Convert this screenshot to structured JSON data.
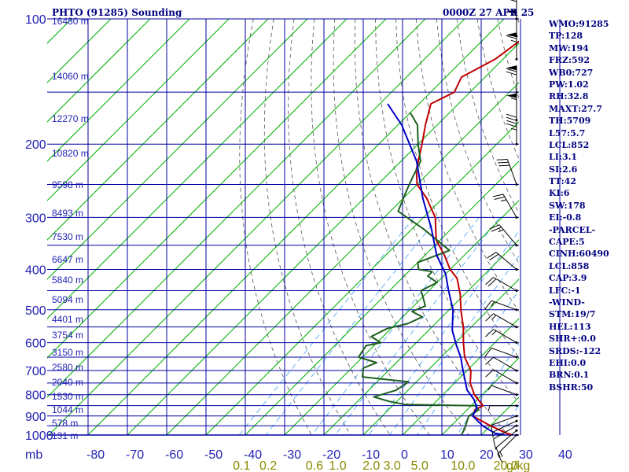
{
  "header": {
    "station_title": "PHTO (91285) Sounding",
    "valid_time": "0000Z 27 APR 25"
  },
  "axes": {
    "pressure_ticks": [
      "100",
      "200",
      "300",
      "400",
      "500",
      "600",
      "700",
      "800",
      "900",
      "1000"
    ],
    "pressure_unit": "mb",
    "temp_ticks": [
      "-80",
      "-70",
      "-60",
      "-50",
      "-40",
      "-30",
      "-20",
      "-10",
      "0",
      "10",
      "20",
      "30",
      "40"
    ],
    "mixing_ratio_labels": [
      "0.1",
      "0.2",
      "0.6",
      "1.0",
      "2.0",
      "3.0",
      "5.0",
      "10.0",
      "20.0"
    ],
    "mixing_ratio_unit": "g/kg"
  },
  "height_labels": [
    "16480 m",
    "14060 m",
    "12270 m",
    "10820 m",
    "9598 m",
    "8493 m",
    "7530 m",
    "6647 m",
    "5840 m",
    "5094 m",
    "4401 m",
    "3754 m",
    "3150 m",
    "2580 m",
    "2040 m",
    "1530 m",
    "1044 m",
    "578 m",
    "131 m"
  ],
  "indices": [
    "WMO:91285",
    "TP:128",
    "MW:194",
    "FRZ:592",
    "WB0:727",
    "PW:1.02",
    "RH:32.8",
    "MAXT:27.7",
    "TH:5709",
    "L57:5.7",
    "LCL:852",
    "LI:3.1",
    "SI:2.6",
    "TT:42",
    "KI:6",
    "SW:178",
    "EI:-0.8",
    "-PARCEL-",
    "CAPE:5",
    "CINH:60490",
    "LCL:858",
    "CAP:3.9",
    "LFC:-1",
    "-WIND-",
    "STM:19/7",
    "HEL:113",
    "SHR+:0.0",
    "SRDS:-122",
    "EHI:0.0",
    "BRN:0.1",
    "BSHR:50"
  ],
  "colors": {
    "temperature": "#c00000",
    "dewpoint": "#1f5f1f",
    "parcel": "#0000c8",
    "isobar": "#0000a0",
    "isotherm": "#00b000",
    "dry_adiabat": "#555555",
    "mixing_ratio": "#3fa0ff"
  },
  "chart_data": {
    "type": "line",
    "title": "PHTO (91285) Sounding",
    "subtitle": "0000Z 27 APR 25",
    "xlabel": "",
    "ylabel": "mb",
    "x_unit": "degC",
    "y_unit": "mb",
    "xlim": [
      -80,
      40
    ],
    "ylim": [
      1000,
      100
    ],
    "y_scale": "log",
    "grid": true,
    "series": [
      {
        "values": [
          [
            28,
            1000
          ],
          [
            26,
            990
          ],
          [
            20,
            950
          ],
          [
            13,
            900
          ],
          [
            12,
            870
          ],
          [
            13,
            850
          ],
          [
            10,
            820
          ],
          [
            8,
            800
          ],
          [
            4,
            750
          ],
          [
            1,
            700
          ],
          [
            -4,
            650
          ],
          [
            -8,
            600
          ],
          [
            -12,
            550
          ],
          [
            -17,
            500
          ],
          [
            -21,
            460
          ],
          [
            -26,
            420
          ],
          [
            -30,
            400
          ],
          [
            -35,
            370
          ],
          [
            -41,
            340
          ],
          [
            -47,
            300
          ],
          [
            -54,
            270
          ],
          [
            -60,
            250
          ],
          [
            -64,
            230
          ],
          [
            -69,
            200
          ],
          [
            -73,
            180
          ],
          [
            -77,
            160
          ],
          [
            -74,
            150
          ],
          [
            -76,
            138
          ],
          [
            -72,
            125
          ],
          [
            -70,
            110
          ],
          [
            -71,
            100
          ]
        ]
      },
      {
        "values": [
          [
            15,
            1000
          ],
          [
            14,
            960
          ],
          [
            13,
            930
          ],
          [
            12,
            900
          ],
          [
            13,
            870
          ],
          [
            11,
            850
          ],
          [
            -7,
            845
          ],
          [
            -12,
            830
          ],
          [
            -17,
            810
          ],
          [
            -13,
            780
          ],
          [
            -12,
            745
          ],
          [
            -25,
            725
          ],
          [
            -27,
            690
          ],
          [
            -25,
            670
          ],
          [
            -31,
            650
          ],
          [
            -32,
            610
          ],
          [
            -29,
            600
          ],
          [
            -33,
            580
          ],
          [
            -31,
            555
          ],
          [
            -27,
            540
          ],
          [
            -25,
            520
          ],
          [
            -29,
            505
          ],
          [
            -27,
            490
          ],
          [
            -30,
            465
          ],
          [
            -32,
            450
          ],
          [
            -30,
            430
          ],
          [
            -34,
            415
          ],
          [
            -34,
            405
          ],
          [
            -38,
            400
          ],
          [
            -40,
            385
          ],
          [
            -35,
            360
          ],
          [
            -47,
            320
          ],
          [
            -58,
            290
          ],
          [
            -61,
            260
          ],
          [
            -63,
            240
          ],
          [
            -65,
            220
          ],
          [
            -70,
            200
          ],
          [
            -75,
            180
          ],
          [
            -80,
            168
          ]
        ]
      },
      {
        "values": [
          [
            26,
            1000
          ],
          [
            23,
            990
          ],
          [
            18,
            950
          ],
          [
            13,
            900
          ],
          [
            12,
            860
          ],
          [
            9,
            820
          ],
          [
            5,
            780
          ],
          [
            -1,
            700
          ],
          [
            -5,
            650
          ],
          [
            -9,
            610
          ],
          [
            -14,
            560
          ],
          [
            -19,
            500
          ],
          [
            -25,
            450
          ],
          [
            -30,
            410
          ],
          [
            -37,
            370
          ],
          [
            -45,
            320
          ],
          [
            -55,
            270
          ],
          [
            -66,
            220
          ],
          [
            -79,
            180
          ],
          [
            -88,
            160
          ]
        ]
      }
    ]
  },
  "winds": [
    {
      "p": 1000,
      "dir": 225,
      "spd": 15
    },
    {
      "p": 975,
      "dir": 230,
      "spd": 10
    },
    {
      "p": 950,
      "dir": 240,
      "spd": 10
    },
    {
      "p": 925,
      "dir": 245,
      "spd": 5
    },
    {
      "p": 900,
      "dir": 250,
      "spd": 5
    },
    {
      "p": 850,
      "dir": 270,
      "spd": 5
    },
    {
      "p": 800,
      "dir": 290,
      "spd": 5
    },
    {
      "p": 750,
      "dir": 300,
      "spd": 10
    },
    {
      "p": 700,
      "dir": 300,
      "spd": 10
    },
    {
      "p": 650,
      "dir": 290,
      "spd": 10
    },
    {
      "p": 600,
      "dir": 300,
      "spd": 15
    },
    {
      "p": 550,
      "dir": 300,
      "spd": 15
    },
    {
      "p": 500,
      "dir": 290,
      "spd": 15
    },
    {
      "p": 450,
      "dir": 300,
      "spd": 20
    },
    {
      "p": 400,
      "dir": 310,
      "spd": 20
    },
    {
      "p": 350,
      "dir": 320,
      "spd": 25
    },
    {
      "p": 300,
      "dir": 330,
      "spd": 25
    },
    {
      "p": 250,
      "dir": 340,
      "spd": 30
    },
    {
      "p": 200,
      "dir": 0,
      "spd": 45
    },
    {
      "p": 175,
      "dir": 0,
      "spd": 55
    },
    {
      "p": 150,
      "dir": 0,
      "spd": 70
    },
    {
      "p": 125,
      "dir": 0,
      "spd": 65
    },
    {
      "p": 110,
      "dir": 0,
      "spd": 55
    },
    {
      "p": 100,
      "dir": 0,
      "spd": 40
    }
  ]
}
